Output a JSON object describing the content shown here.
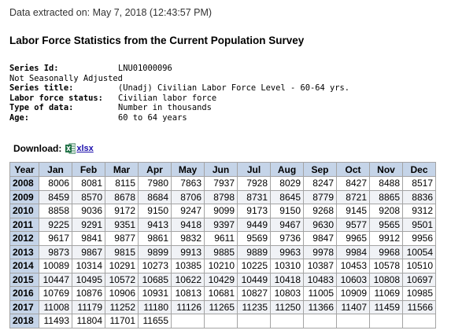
{
  "extracted": "Data extracted on: May 7, 2018 (12:43:57 PM)",
  "title": "Labor Force Statistics from the Current Population Survey",
  "meta": {
    "series_id_label": "Series Id:",
    "series_id": "LNU01000096",
    "adjustment": "Not Seasonally Adjusted",
    "series_title_label": "Series title:",
    "series_title": "(Unadj) Civilian Labor Force Level - 60-64 yrs.",
    "labor_force_status_label": "Labor force status:",
    "labor_force_status": "Civilian labor force",
    "type_label": "Type of data:",
    "type": "Number in thousands",
    "age_label": "Age:",
    "age": "60 to 64 years"
  },
  "download": {
    "label": "Download:",
    "icon": "excel-icon",
    "link": "xlsx"
  },
  "colors": {
    "header_bg": "#c5d4e8",
    "link": "#1a0dab",
    "excel_green": "#1d7044"
  },
  "table": {
    "headers": [
      "Year",
      "Jan",
      "Feb",
      "Mar",
      "Apr",
      "May",
      "Jun",
      "Jul",
      "Aug",
      "Sep",
      "Oct",
      "Nov",
      "Dec"
    ],
    "rows": [
      {
        "year": "2008",
        "values": [
          "8006",
          "8081",
          "8115",
          "7980",
          "7863",
          "7937",
          "7928",
          "8029",
          "8247",
          "8427",
          "8488",
          "8517"
        ]
      },
      {
        "year": "2009",
        "values": [
          "8459",
          "8570",
          "8678",
          "8684",
          "8706",
          "8798",
          "8731",
          "8645",
          "8779",
          "8721",
          "8865",
          "8836"
        ]
      },
      {
        "year": "2010",
        "values": [
          "8858",
          "9036",
          "9172",
          "9150",
          "9247",
          "9099",
          "9173",
          "9150",
          "9268",
          "9145",
          "9208",
          "9312"
        ]
      },
      {
        "year": "2011",
        "values": [
          "9225",
          "9291",
          "9351",
          "9413",
          "9418",
          "9397",
          "9449",
          "9467",
          "9630",
          "9577",
          "9565",
          "9501"
        ]
      },
      {
        "year": "2012",
        "values": [
          "9617",
          "9841",
          "9877",
          "9861",
          "9832",
          "9611",
          "9569",
          "9736",
          "9847",
          "9965",
          "9912",
          "9956"
        ]
      },
      {
        "year": "2013",
        "values": [
          "9873",
          "9867",
          "9815",
          "9899",
          "9913",
          "9885",
          "9889",
          "9963",
          "9978",
          "9984",
          "9968",
          "10054"
        ]
      },
      {
        "year": "2014",
        "values": [
          "10089",
          "10314",
          "10291",
          "10273",
          "10385",
          "10210",
          "10225",
          "10310",
          "10387",
          "10453",
          "10578",
          "10510"
        ]
      },
      {
        "year": "2015",
        "values": [
          "10447",
          "10495",
          "10572",
          "10685",
          "10622",
          "10429",
          "10449",
          "10418",
          "10483",
          "10603",
          "10808",
          "10697"
        ]
      },
      {
        "year": "2016",
        "values": [
          "10769",
          "10876",
          "10906",
          "10931",
          "10813",
          "10681",
          "10827",
          "10803",
          "11005",
          "10909",
          "11069",
          "10985"
        ]
      },
      {
        "year": "2017",
        "values": [
          "11008",
          "11179",
          "11252",
          "11180",
          "11126",
          "11265",
          "11235",
          "11250",
          "11366",
          "11407",
          "11459",
          "11566"
        ]
      },
      {
        "year": "2018",
        "values": [
          "11493",
          "11804",
          "11701",
          "11655",
          "",
          "",
          "",
          "",
          "",
          "",
          "",
          ""
        ]
      }
    ]
  }
}
